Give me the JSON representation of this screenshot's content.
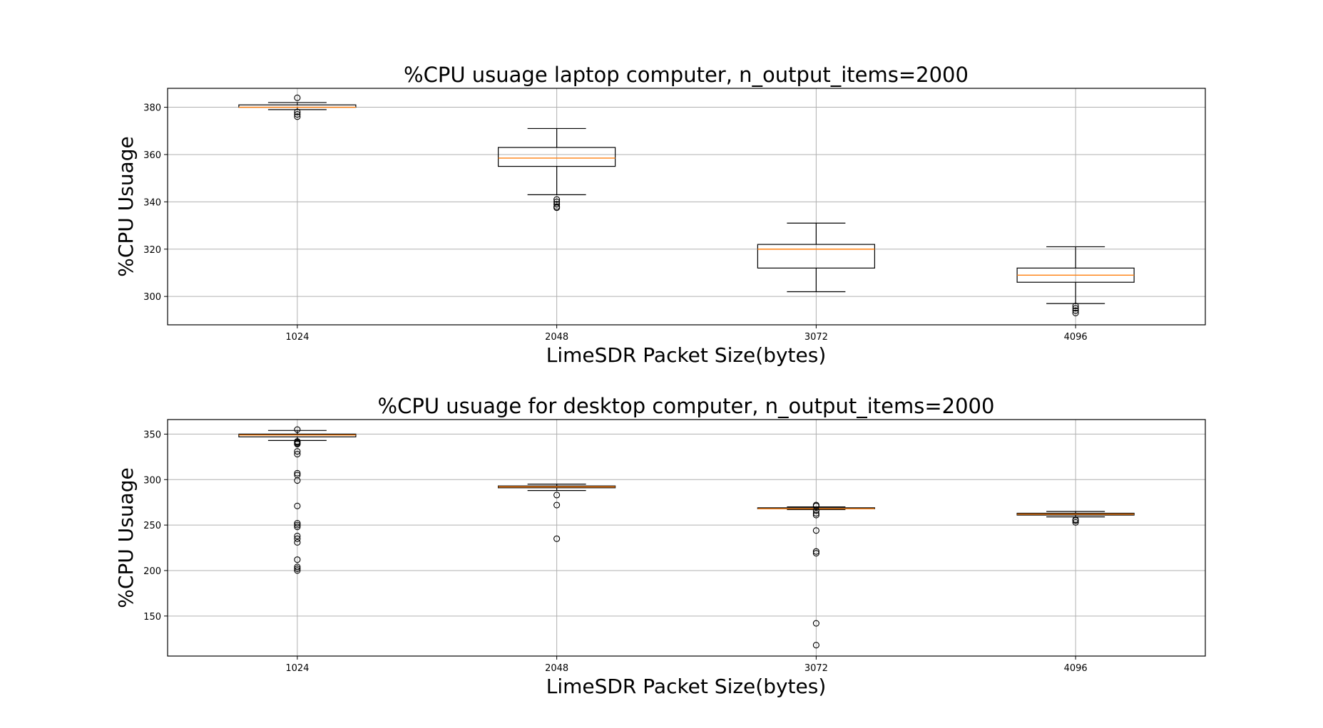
{
  "chart_data": [
    {
      "type": "box",
      "title": "%CPU usuage laptop computer, n_output_items=2000",
      "xlabel": "LimeSDR Packet Size(bytes)",
      "ylabel": "%CPU Usuage",
      "ylim": [
        288,
        388
      ],
      "yticks": [
        300,
        320,
        340,
        360,
        380
      ],
      "grid": true,
      "categories": [
        "1024",
        "2048",
        "3072",
        "4096"
      ],
      "boxes": [
        {
          "category": "1024",
          "whislo": 379,
          "q1": 380,
          "median": 380,
          "q3": 381,
          "whishi": 382,
          "fliers": [
            384,
            378,
            377,
            376
          ]
        },
        {
          "category": "2048",
          "whislo": 343,
          "q1": 355,
          "median": 358.5,
          "q3": 363,
          "whishi": 371,
          "fliers": [
            341,
            340,
            339,
            338,
            337.5
          ]
        },
        {
          "category": "3072",
          "whislo": 302,
          "q1": 312,
          "median": 320,
          "q3": 322,
          "whishi": 331,
          "fliers": []
        },
        {
          "category": "4096",
          "whislo": 297,
          "q1": 306,
          "median": 309,
          "q3": 312,
          "whishi": 321,
          "fliers": [
            296,
            295,
            294,
            293
          ]
        }
      ]
    },
    {
      "type": "box",
      "title": "%CPU usuage for desktop computer, n_output_items=2000",
      "xlabel": "LimeSDR Packet Size(bytes)",
      "ylabel": "%CPU Usuage",
      "ylim": [
        106,
        366
      ],
      "yticks": [
        150,
        200,
        250,
        300,
        350
      ],
      "grid": true,
      "categories": [
        "1024",
        "2048",
        "3072",
        "4096"
      ],
      "boxes": [
        {
          "category": "1024",
          "whislo": 343,
          "q1": 347,
          "median": 349,
          "q3": 350,
          "whishi": 354,
          "fliers": [
            355,
            342,
            341,
            340,
            339,
            331,
            328,
            307,
            305,
            299,
            271,
            252,
            250,
            248,
            238,
            235,
            231,
            212,
            204,
            202,
            200
          ]
        },
        {
          "category": "2048",
          "whislo": 288,
          "q1": 291,
          "median": 292,
          "q3": 293,
          "whishi": 295,
          "fliers": [
            283,
            272,
            235
          ]
        },
        {
          "category": "3072",
          "whislo": 267,
          "q1": 268,
          "median": 268,
          "q3": 269,
          "whishi": 270,
          "fliers": [
            272,
            271,
            266,
            263,
            261,
            244,
            221,
            219,
            142,
            118
          ]
        },
        {
          "category": "4096",
          "whislo": 259,
          "q1": 261,
          "median": 262,
          "q3": 263,
          "whishi": 265,
          "fliers": [
            256,
            255,
            253
          ]
        }
      ]
    }
  ],
  "colors": {
    "median": "#ff7f0e",
    "box": "#000000",
    "grid": "#b0b0b0"
  }
}
